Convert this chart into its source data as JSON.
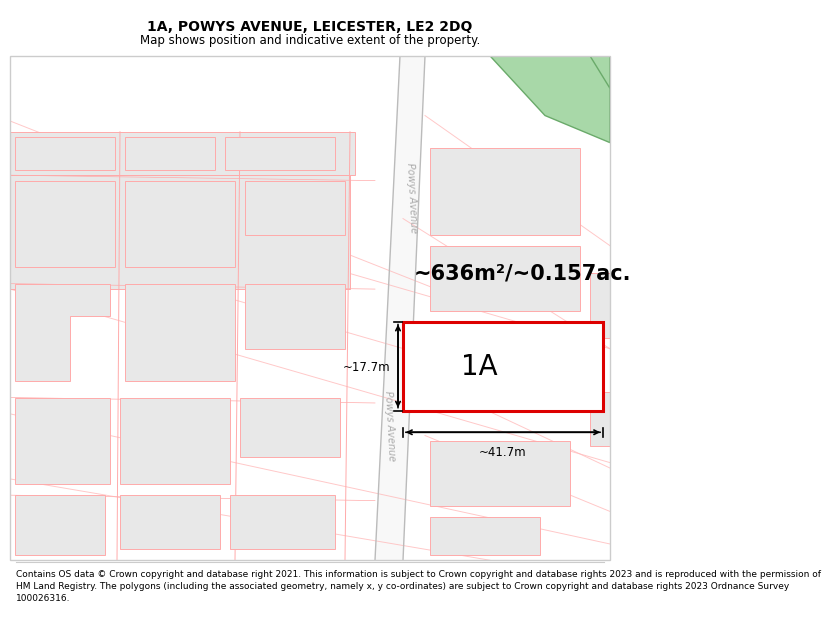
{
  "title": "1A, POWYS AVENUE, LEICESTER, LE2 2DQ",
  "subtitle": "Map shows position and indicative extent of the property.",
  "footer_lines": [
    "Contains OS data © Crown copyright and database right 2021. This information is subject to Crown copyright and database rights 2023 and is reproduced with the permission of",
    "HM Land Registry. The polygons (including the associated geometry, namely x, y co-ordinates) are subject to Crown copyright and database rights 2023 Ordnance Survey",
    "100026316."
  ],
  "area_label": "~636m²/~0.157ac.",
  "width_label": "~41.7m",
  "height_label": "~17.7m",
  "plot_label": "1A",
  "road_label": "Powys Avenue",
  "bg_color": "#ffffff",
  "plot_border_color": "#dd0000",
  "neighbor_border_color": "#ffaaaa",
  "neighbor_fill": "#e8e8e8",
  "road_fill": "#f8f8f8",
  "road_line_color": "#bbbbbb",
  "green_fill": "#a8d8a8",
  "green_border": "#6aaa6a",
  "diag_line_color": "#ffbbbb",
  "title_fontsize": 10,
  "subtitle_fontsize": 8.5,
  "footer_fontsize": 6.5,
  "area_fontsize": 15,
  "plot_label_fontsize": 20,
  "dim_label_fontsize": 8.5
}
